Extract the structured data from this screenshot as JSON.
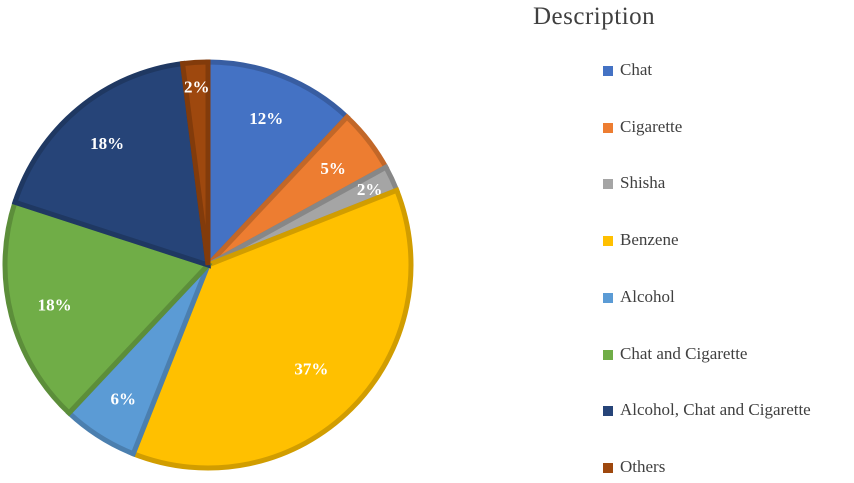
{
  "chart_data": {
    "type": "pie",
    "legend_title": "Description",
    "legend_position": "right",
    "slices": [
      {
        "label": "Chat",
        "value": 12,
        "display": "12%",
        "color": "#4472C4"
      },
      {
        "label": "Cigarette",
        "value": 5,
        "display": "5%",
        "color": "#ED7D31"
      },
      {
        "label": "Shisha",
        "value": 2,
        "display": "2%",
        "color": "#A5A5A5"
      },
      {
        "label": "Benzene",
        "value": 37,
        "display": "37%",
        "color": "#FFC000"
      },
      {
        "label": "Alcohol",
        "value": 6,
        "display": "6%",
        "color": "#5B9BD5"
      },
      {
        "label": "Chat and Cigarette",
        "value": 18,
        "display": "18%",
        "color": "#70AD47"
      },
      {
        "label": "Alcohol, Chat and Cigarette",
        "value": 18,
        "display": "18%",
        "color": "#264478"
      },
      {
        "label": "Others",
        "value": 2,
        "display": "2%",
        "color": "#9E480E"
      }
    ]
  }
}
